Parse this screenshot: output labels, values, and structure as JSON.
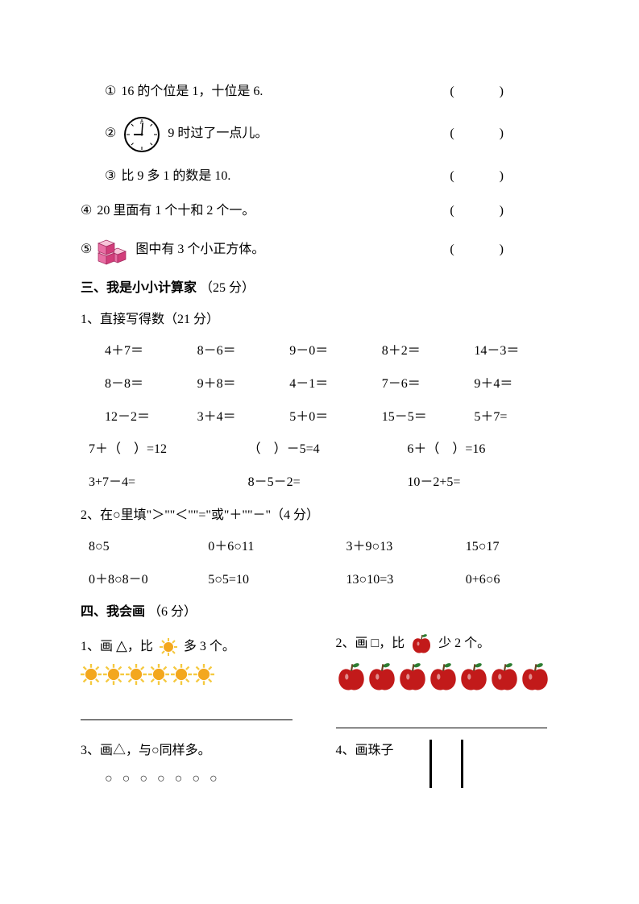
{
  "q1": {
    "num": "①",
    "text": "16 的个位是 1，十位是 6.",
    "paren": "(　　)"
  },
  "q2": {
    "num": "②",
    "text": "9 时过了一点儿。",
    "paren": "(　　)"
  },
  "q3": {
    "num": "③",
    "text": "比 9 多 1 的数是 10.",
    "paren": "(　　)"
  },
  "q4": {
    "num": "④",
    "text": "20 里面有 1 个十和 2 个一。",
    "paren": "(　　)"
  },
  "q5": {
    "num": "⑤",
    "text": "图中有 3 个小正方体。",
    "paren": "(　　)"
  },
  "section3": {
    "title": "三、我是小小计算家",
    "points": "（25 分）"
  },
  "sub1": {
    "title": "1、直接写得数（21 分）"
  },
  "calc": {
    "row1": [
      "4＋7＝",
      "8－6＝",
      "9－0＝",
      "8＋2＝",
      "14－3＝"
    ],
    "row2": [
      "8－8＝",
      "9＋8＝",
      "4－1＝",
      "7－6＝",
      "9＋4＝"
    ],
    "row3": [
      "12－2＝",
      "3＋4＝",
      "5＋0＝",
      "15－5＝",
      "5＋7="
    ],
    "row4": [
      "7＋（　）=12",
      "（　）－5=4",
      "6＋（　）=16"
    ],
    "row5": [
      "3+7－4=",
      "8－5－2=",
      "10－2+5="
    ]
  },
  "sub2": {
    "title": "2、在○里填\"＞\"\"＜\"\"=\"或\"＋\"\"－\"（4 分）"
  },
  "comp": {
    "row1": [
      "8○5",
      "0＋6○11",
      "3＋9○13",
      "15○17"
    ],
    "row2": [
      "0＋8○8－0",
      "5○5=10",
      "13○10=3",
      "0+6○6"
    ]
  },
  "section4": {
    "title": "四、我会画",
    "points": "（6 分）"
  },
  "draw1": {
    "pre": "1、画 ",
    "tri": "△",
    "mid": "，比 ",
    "post": " 多 3 个。"
  },
  "draw2": {
    "pre": "2、画 □，比 ",
    "post": " 少 2 个。"
  },
  "draw3": {
    "text": "3、画△，与○同样多。"
  },
  "draw4": {
    "text": "4、画珠子"
  },
  "circles": "○ ○ ○ ○ ○ ○ ○",
  "colors": {
    "sun_outer": "#f5c93f",
    "sun_inner": "#f3a71e",
    "apple_fill": "#c21a1a",
    "apple_leaf": "#2e7d32",
    "apple_stem": "#6b3e1f",
    "cube_top": "#f7c5d9",
    "cube_left": "#e86fa4",
    "cube_right": "#d23d7a",
    "clock_face": "#ffffff",
    "clock_border": "#000000"
  },
  "sun_count": 6,
  "apple_count": 7
}
